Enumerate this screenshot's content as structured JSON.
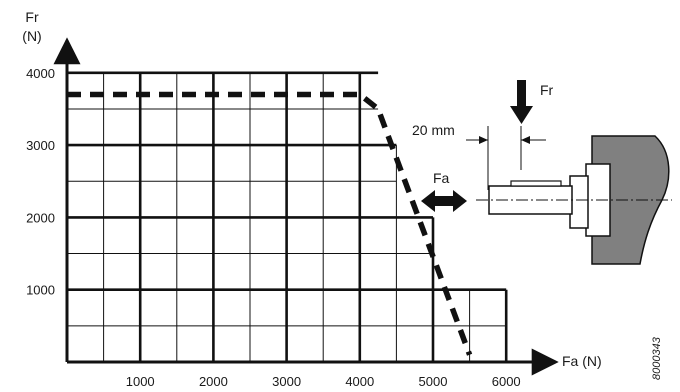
{
  "chart_data": {
    "type": "line",
    "x_axis": {
      "label": "Fa (N)",
      "ticks": [
        1000,
        2000,
        3000,
        4000,
        5000,
        6000
      ],
      "range": [
        0,
        6600
      ]
    },
    "y_axis": {
      "label_line1": "Fr",
      "label_line2": "(N)",
      "ticks": [
        1000,
        2000,
        3000,
        4000
      ],
      "range": [
        0,
        4300
      ]
    },
    "grid": true,
    "grid_minor_step_x": 500,
    "grid_minor_step_y": 500,
    "grid_outline": [
      [
        0,
        4000
      ],
      [
        4250,
        4000
      ],
      [
        4250,
        3000
      ],
      [
        4500,
        3000
      ],
      [
        4500,
        2000
      ],
      [
        5000,
        2000
      ],
      [
        5000,
        1000
      ],
      [
        6000,
        1000
      ],
      [
        6000,
        0
      ]
    ],
    "series": [
      {
        "style": "dashed",
        "points": [
          [
            0,
            3700
          ],
          [
            4000,
            3700
          ],
          [
            4250,
            3500
          ],
          [
            5500,
            100
          ]
        ]
      }
    ],
    "annotations": {
      "fr_label": "Fr",
      "fa_label": "Fa",
      "distance_label": "20 mm",
      "drawing_code": "8000343"
    }
  }
}
